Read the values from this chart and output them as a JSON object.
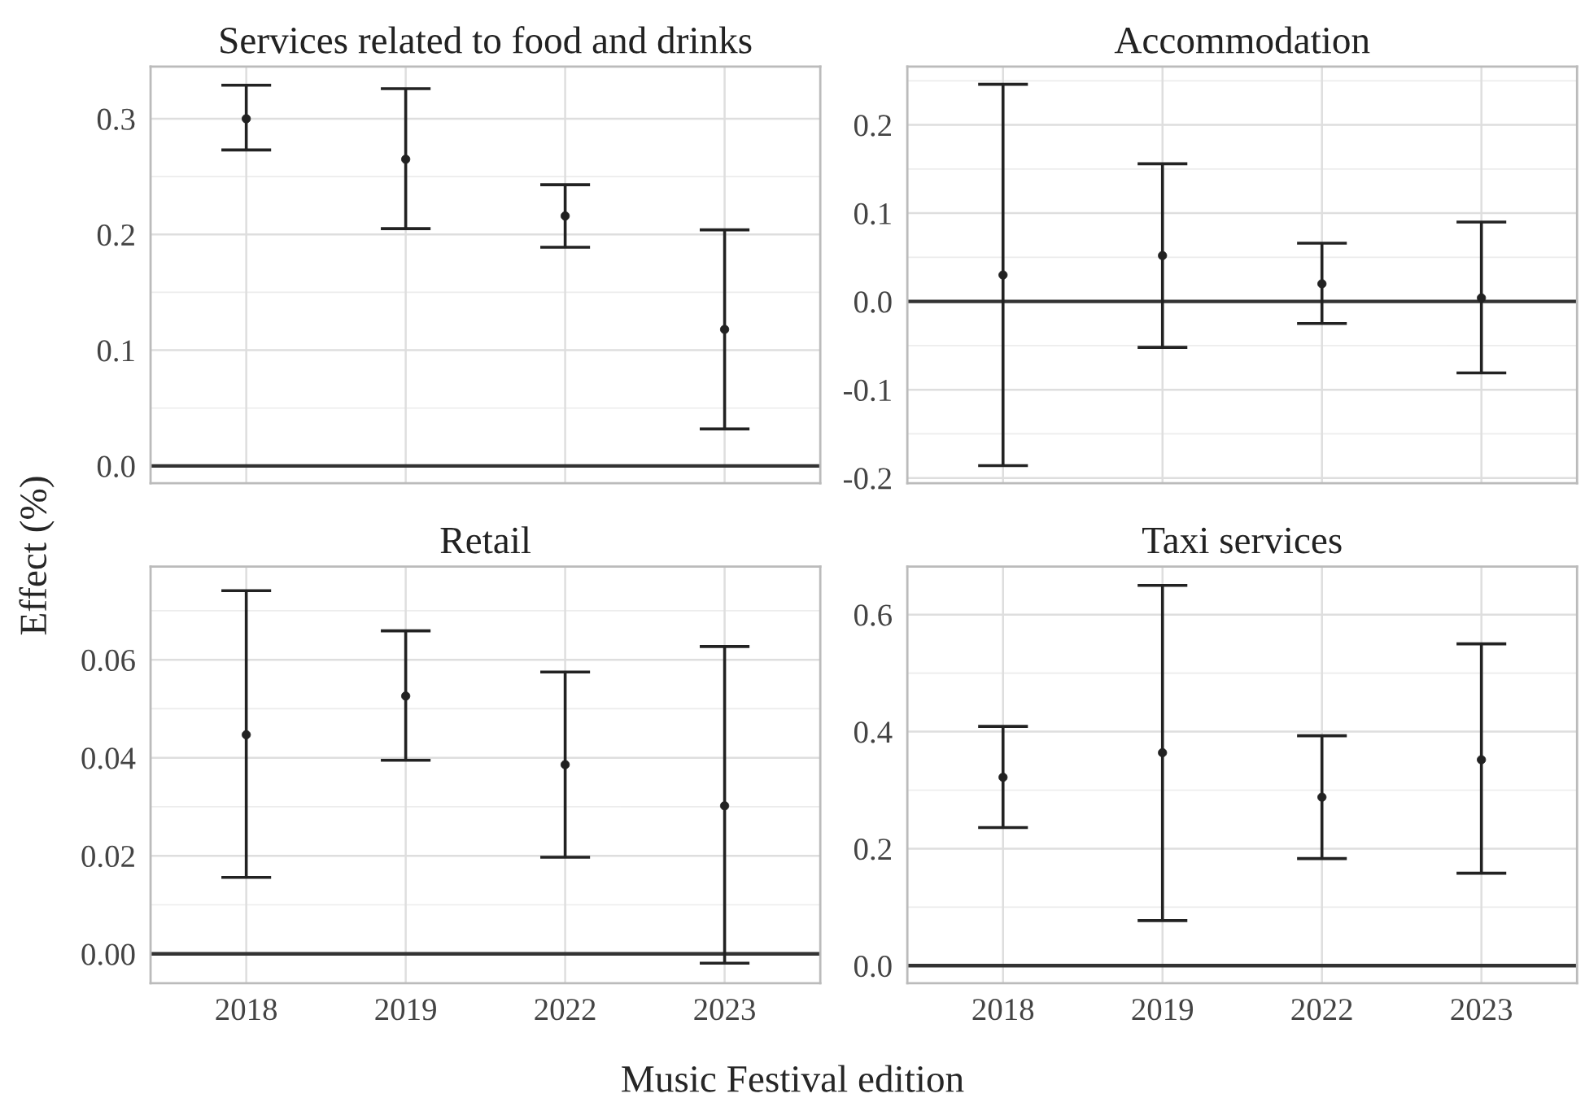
{
  "chart_data": [
    {
      "type": "scatter",
      "title": "Services related to food and drinks",
      "ylabel": "Effect (%)",
      "categories": [
        "2018",
        "2019",
        "2022",
        "2023"
      ],
      "series": [
        {
          "color": "#222222",
          "values": [
            0.3,
            0.265,
            0.216,
            0.118
          ],
          "errors": [
            [
              0.273,
              0.329
            ],
            [
              0.205,
              0.326
            ],
            [
              0.189,
              0.243
            ],
            [
              0.032,
              0.204
            ]
          ]
        }
      ],
      "ylim": [
        -0.015,
        0.345
      ],
      "yticks": [
        {
          "value": 0,
          "label": "0.0"
        },
        0.1,
        0.2,
        0.3
      ],
      "ref_lines": [
        {
          "axis": "y",
          "value": 0
        }
      ],
      "grid": true,
      "marker": "circle",
      "tick_labels": "y"
    },
    {
      "type": "scatter",
      "title": "Accommodation",
      "categories": [
        "2018",
        "2019",
        "2022",
        "2023"
      ],
      "series": [
        {
          "color": "#222222",
          "values": [
            0.03,
            0.052,
            0.02,
            0.004
          ],
          "errors": [
            [
              -0.186,
              0.246
            ],
            [
              -0.052,
              0.156
            ],
            [
              -0.025,
              0.066
            ],
            [
              -0.081,
              0.09
            ]
          ]
        }
      ],
      "ylim": [
        -0.206,
        0.266
      ],
      "yticks": [
        {
          "value": -0.2,
          "label": "-0.2"
        },
        {
          "value": -0.1,
          "label": "-0.1"
        },
        {
          "value": 0,
          "label": "0.0"
        },
        0.1,
        0.2
      ],
      "ref_lines": [
        {
          "axis": "y",
          "value": 0
        }
      ],
      "grid": true,
      "marker": "circle",
      "tick_labels": "y"
    },
    {
      "type": "scatter",
      "title": "Retail",
      "xlabel": "Music Festival edition",
      "categories": [
        "2018",
        "2019",
        "2022",
        "2023"
      ],
      "series": [
        {
          "color": "#222222",
          "values": [
            0.0447,
            0.0526,
            0.0386,
            0.0302
          ],
          "errors": [
            [
              0.0156,
              0.0741
            ],
            [
              0.0395,
              0.0659
            ],
            [
              0.0197,
              0.0575
            ],
            [
              -0.0019,
              0.0627
            ]
          ]
        }
      ],
      "ylim": [
        -0.006,
        0.079
      ],
      "yticks": [
        {
          "value": 0,
          "label": "0.00"
        },
        {
          "value": 0.02,
          "label": "0.02"
        },
        {
          "value": 0.04,
          "label": "0.04"
        },
        {
          "value": 0.06,
          "label": "0.06"
        }
      ],
      "ref_lines": [
        {
          "axis": "y",
          "value": 0
        }
      ],
      "grid": true,
      "marker": "circle"
    },
    {
      "type": "scatter",
      "title": "Taxi services",
      "categories": [
        "2018",
        "2019",
        "2022",
        "2023"
      ],
      "series": [
        {
          "color": "#222222",
          "values": [
            0.322,
            0.364,
            0.288,
            0.352
          ],
          "errors": [
            [
              0.236,
              0.409
            ],
            [
              0.077,
              0.65
            ],
            [
              0.183,
              0.393
            ],
            [
              0.158,
              0.55
            ]
          ]
        }
      ],
      "ylim": [
        -0.03,
        0.682
      ],
      "yticks": [
        {
          "value": 0,
          "label": "0.0"
        },
        0.2,
        0.4,
        0.6
      ],
      "ref_lines": [
        {
          "axis": "y",
          "value": 0
        }
      ],
      "grid": true,
      "marker": "circle"
    }
  ]
}
